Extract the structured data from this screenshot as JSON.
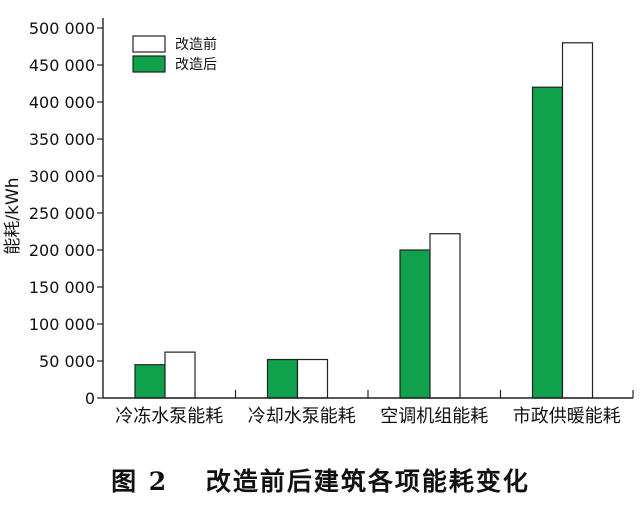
{
  "chart_data": {
    "type": "bar",
    "title": "",
    "xlabel": "",
    "ylabel": "能耗/kWh",
    "categories": [
      "冷冻水泵能耗",
      "冷却水泵能耗",
      "空调机组能耗",
      "市政供暖能耗"
    ],
    "series": [
      {
        "name": "改造后",
        "values": [
          45000,
          52000,
          200000,
          420000
        ],
        "color": "#0fa14b"
      },
      {
        "name": "改造前",
        "values": [
          62000,
          52000,
          222000,
          480000
        ],
        "color": "#ffffff"
      }
    ],
    "ylim": [
      0,
      500000
    ],
    "yticks": [
      0,
      50000,
      100000,
      150000,
      200000,
      250000,
      300000,
      350000,
      400000,
      450000,
      500000
    ],
    "ytick_labels": [
      "0",
      "50 000",
      "100 000",
      "150 000",
      "200 000",
      "250 000",
      "300 000",
      "350 000",
      "400 000",
      "450 000",
      "500 000"
    ],
    "legend": {
      "placement": "top-left",
      "order": [
        "改造前",
        "改造后"
      ]
    },
    "grid": false
  },
  "caption": "图 2　 改造前后建筑各项能耗变化"
}
